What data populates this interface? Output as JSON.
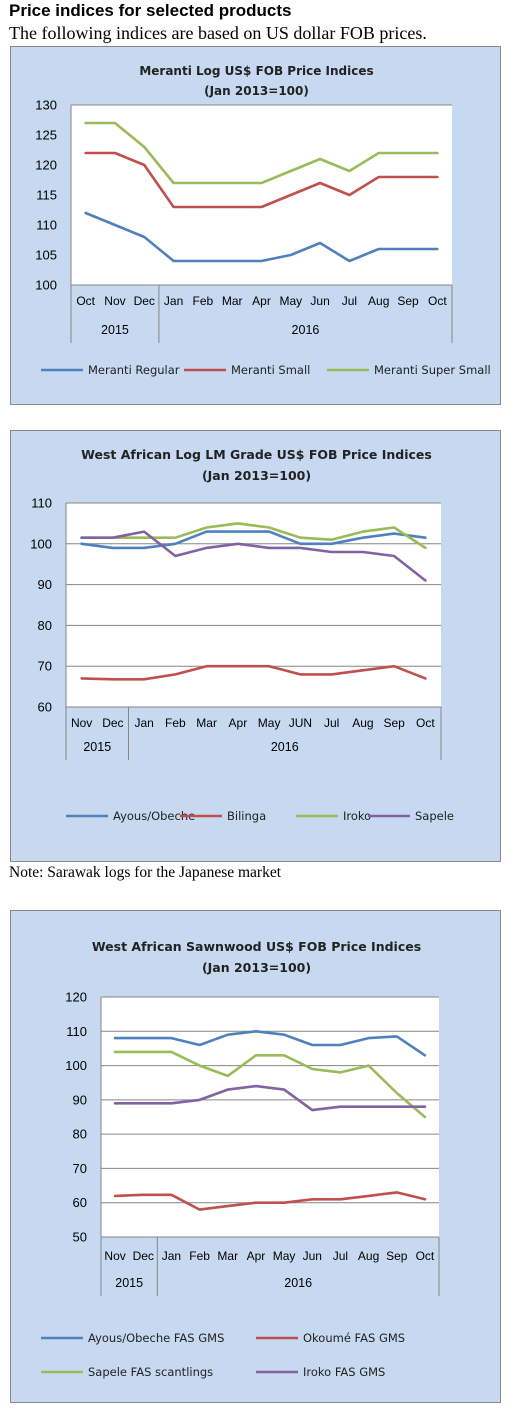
{
  "page": {
    "heading": "Price indices for selected products",
    "subheading": "The following indices are based on US dollar FOB prices.",
    "note": "Note: Sarawak logs for the Japanese market"
  },
  "chart_data": [
    {
      "type": "line",
      "title": "Meranti Log US$ FOB Price Indices",
      "subtitle": "(Jan 2013=100)",
      "categories": [
        "Oct",
        "Nov",
        "Dec",
        "Jan",
        "Feb",
        "Mar",
        "Apr",
        "May",
        "Jun",
        "Jul",
        "Aug",
        "Sep",
        "Oct"
      ],
      "year_groups": [
        {
          "label": "2015",
          "count": 3
        },
        {
          "label": "2016",
          "count": 10
        }
      ],
      "ylim": [
        100,
        130
      ],
      "yticks": [
        100,
        105,
        110,
        115,
        120,
        125,
        130
      ],
      "grid": false,
      "legend_position": "bottom",
      "series": [
        {
          "name": "Meranti Regular",
          "color": "#4f81bd",
          "values": [
            112,
            110,
            108,
            104,
            104,
            104,
            104,
            105,
            107,
            104,
            106,
            106,
            106
          ]
        },
        {
          "name": "Meranti Small",
          "color": "#c0504d",
          "values": [
            122,
            122,
            120,
            113,
            113,
            113,
            113,
            115,
            117,
            115,
            118,
            118,
            118
          ]
        },
        {
          "name": "Meranti Super Small",
          "color": "#9bbb59",
          "values": [
            127,
            127,
            123,
            117,
            117,
            117,
            117,
            119,
            121,
            119,
            122,
            122,
            122
          ]
        }
      ]
    },
    {
      "type": "line",
      "title": "West African Log LM Grade US$ FOB Price Indices",
      "subtitle": "(Jan 2013=100)",
      "categories": [
        "Nov",
        "Dec",
        "Jan",
        "Feb",
        "Mar",
        "Apr",
        "May",
        "JUN",
        "Jul",
        "Aug",
        "Sep",
        "Oct"
      ],
      "year_groups": [
        {
          "label": "2015",
          "count": 2
        },
        {
          "label": "2016",
          "count": 10
        }
      ],
      "ylim": [
        60,
        110
      ],
      "yticks": [
        60,
        70,
        80,
        90,
        100,
        110
      ],
      "grid": true,
      "legend_position": "bottom",
      "series": [
        {
          "name": "Ayous/Obeche",
          "color": "#4f81bd",
          "values": [
            100,
            99,
            99,
            100,
            103,
            103,
            103,
            100,
            100,
            101.5,
            102.5,
            101.5
          ]
        },
        {
          "name": "Bilinga",
          "color": "#c0504d",
          "values": [
            67,
            66.8,
            66.8,
            68,
            70,
            70,
            70,
            68,
            68,
            69,
            70,
            67
          ]
        },
        {
          "name": "Iroko",
          "color": "#9bbb59",
          "values": [
            101.5,
            101.5,
            101.5,
            101.5,
            104,
            105,
            104,
            101.5,
            101,
            103,
            104,
            99
          ]
        },
        {
          "name": "Sapele",
          "color": "#8064a2",
          "values": [
            101.5,
            101.5,
            103,
            97,
            99,
            100,
            99,
            99,
            98,
            98,
            97,
            91
          ]
        }
      ]
    },
    {
      "type": "line",
      "title": "West African Sawnwood US$ FOB Price Indices",
      "subtitle": "(Jan 2013=100)",
      "categories": [
        "Nov",
        "Dec",
        "Jan",
        "Feb",
        "Mar",
        "Apr",
        "May",
        "Jun",
        "Jul",
        "Aug",
        "Sep",
        "Oct"
      ],
      "year_groups": [
        {
          "label": "2015",
          "count": 2
        },
        {
          "label": "2016",
          "count": 10
        }
      ],
      "ylim": [
        50,
        120
      ],
      "yticks": [
        50,
        60,
        70,
        80,
        90,
        100,
        110,
        120
      ],
      "grid": true,
      "legend_position": "bottom",
      "series": [
        {
          "name": "Ayous/Obeche  FAS GMS",
          "color": "#4f81bd",
          "values": [
            108,
            108,
            108,
            106,
            109,
            110,
            109,
            106,
            106,
            108,
            108.5,
            103
          ]
        },
        {
          "name": "Okoumé  FAS GMS",
          "color": "#c0504d",
          "values": [
            62,
            62.3,
            62.3,
            58,
            59,
            60,
            60,
            61,
            61,
            62,
            63,
            61
          ]
        },
        {
          "name": "Sapele FAS scantlings",
          "color": "#9bbb59",
          "values": [
            104,
            104,
            104,
            100,
            97,
            103,
            103,
            99,
            98,
            100,
            92,
            85
          ]
        },
        {
          "name": "Iroko FAS GMS",
          "color": "#8064a2",
          "values": [
            89,
            89,
            89,
            90,
            93,
            94,
            93,
            87,
            88,
            88,
            88,
            88
          ]
        }
      ]
    }
  ]
}
